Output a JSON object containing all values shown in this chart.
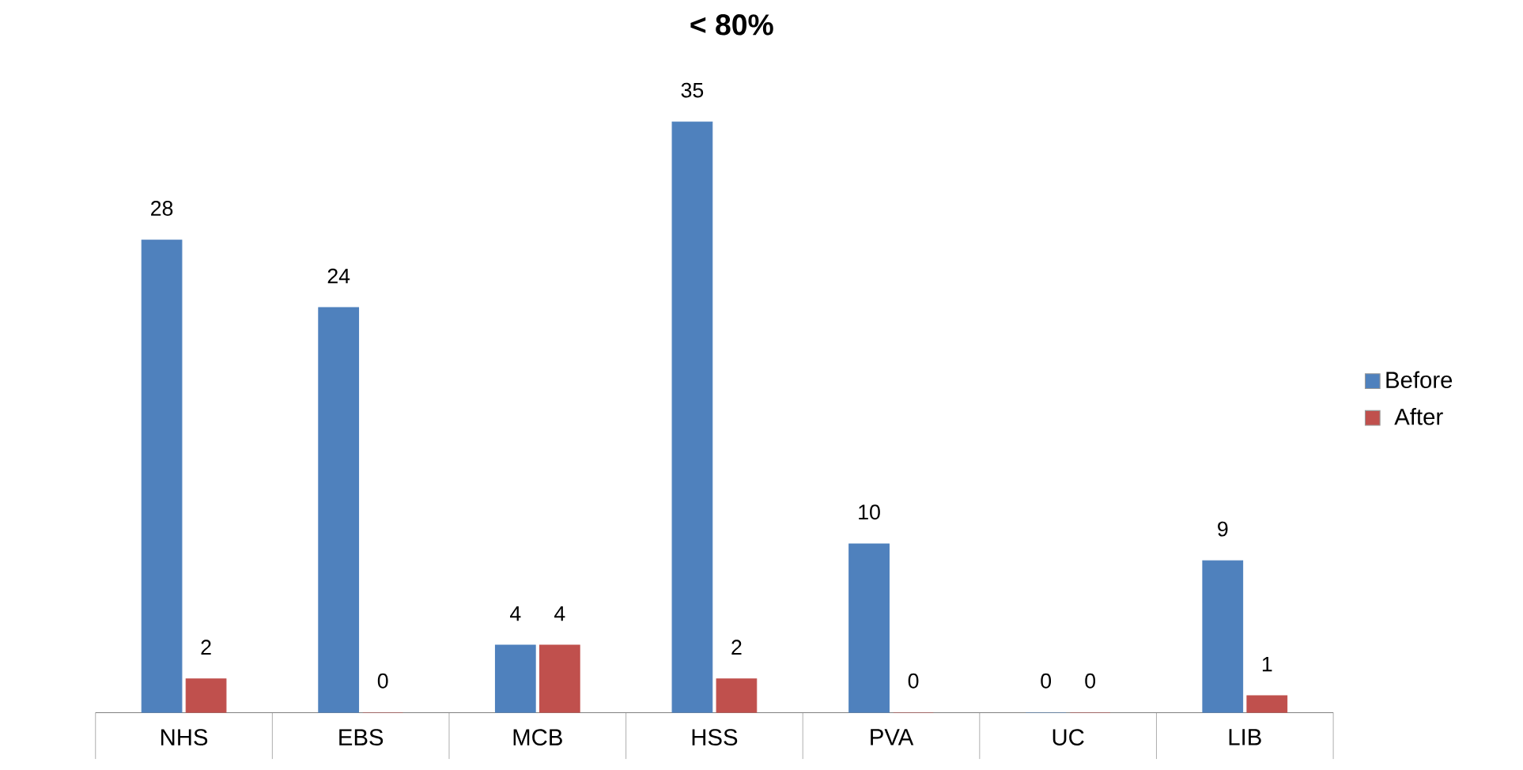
{
  "chart_data": {
    "type": "bar",
    "title": "< 80%",
    "categories": [
      "NHS",
      "EBS",
      "MCB",
      "HSS",
      "PVA",
      "UC",
      "LIB"
    ],
    "series": [
      {
        "name": "Before",
        "color": "#4f81bd",
        "values": [
          28,
          24,
          4,
          35,
          10,
          0,
          9
        ]
      },
      {
        "name": "After",
        "color": "#c0504d",
        "values": [
          2,
          0,
          4,
          2,
          0,
          0,
          1
        ]
      }
    ],
    "data_labels": true,
    "legend": "right",
    "tick_labels": "x"
  }
}
